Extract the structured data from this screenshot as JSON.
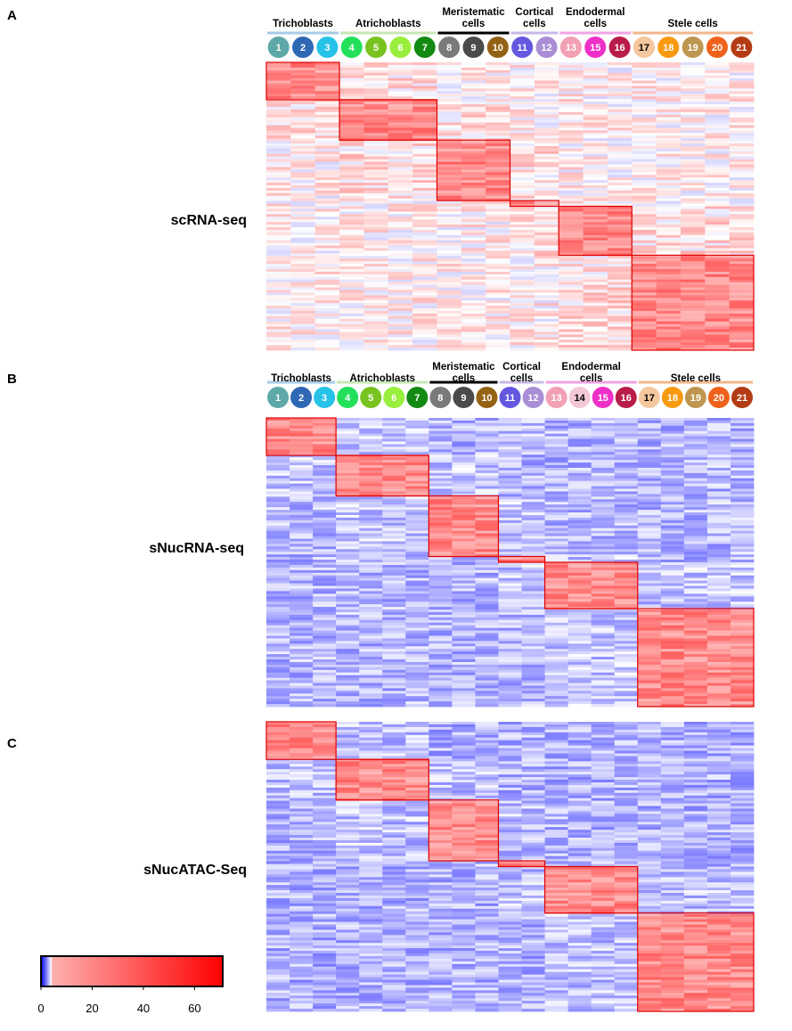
{
  "panels": [
    {
      "letter": "A",
      "assay": "scRNA-seq",
      "groups": [
        {
          "name": "Trichoblasts",
          "lines": [
            "Trichoblasts"
          ],
          "color": "#a9cbe6",
          "clusters": [
            1,
            2,
            3
          ]
        },
        {
          "name": "Atrichoblasts",
          "lines": [
            "Atrichoblasts"
          ],
          "color": "#c8e6b4",
          "clusters": [
            4,
            5,
            6,
            7
          ]
        },
        {
          "name": "Meristematic cells",
          "lines": [
            "Meristematic",
            "cells"
          ],
          "color": "#000000",
          "clusters": [
            8,
            9,
            10
          ]
        },
        {
          "name": "Cortical cells",
          "lines": [
            "Cortical",
            "cells"
          ],
          "color": "#c7b9e8",
          "clusters": [
            11,
            12
          ]
        },
        {
          "name": "Endodermal cells",
          "lines": [
            "Endodermal",
            "cells"
          ],
          "color": "#f0a3e6",
          "clusters": [
            13,
            15,
            16
          ]
        },
        {
          "name": "Stele cells",
          "lines": [
            "Stele cells"
          ],
          "color": "#f2b78d",
          "clusters": [
            17,
            18,
            19,
            20,
            21
          ]
        }
      ]
    },
    {
      "letter": "B",
      "assay": "sNucRNA-seq",
      "groups": [
        {
          "name": "Trichoblasts",
          "lines": [
            "Trichoblasts"
          ],
          "color": "#a9cbe6",
          "clusters": [
            1,
            2,
            3
          ]
        },
        {
          "name": "Atrichoblasts",
          "lines": [
            "Atrichoblasts"
          ],
          "color": "#c8e6b4",
          "clusters": [
            4,
            5,
            6,
            7
          ]
        },
        {
          "name": "Meristematic cells",
          "lines": [
            "Meristematic",
            "cells"
          ],
          "color": "#000000",
          "clusters": [
            8,
            9,
            10
          ]
        },
        {
          "name": "Cortical cells",
          "lines": [
            "Cortical",
            "cells"
          ],
          "color": "#c7b9e8",
          "clusters": [
            11,
            12
          ]
        },
        {
          "name": "Endodermal cells",
          "lines": [
            "Endodermal",
            "cells"
          ],
          "color": "#f0a3e6",
          "clusters": [
            13,
            14,
            15,
            16
          ]
        },
        {
          "name": "Stele cells",
          "lines": [
            "Stele cells"
          ],
          "color": "#f2b78d",
          "clusters": [
            17,
            18,
            19,
            20,
            21
          ]
        }
      ]
    },
    {
      "letter": "C",
      "assay": "sNucATAC-Seq",
      "groups": []
    }
  ],
  "cluster_colors": {
    "1": "#5ea8a8",
    "2": "#2f68b4",
    "3": "#27c2e8",
    "4": "#22e05a",
    "5": "#78c320",
    "6": "#98ef3c",
    "7": "#138a12",
    "8": "#7a7a7a",
    "9": "#4a4a4a",
    "10": "#946214",
    "11": "#6457e0",
    "12": "#a98ed6",
    "13": "#f2a0b4",
    "14": "#f2c8d6",
    "15": "#ee30c8",
    "16": "#b81c48",
    "17": "#f4c79e",
    "18": "#f79a10",
    "19": "#be9650",
    "20": "#f0621c",
    "21": "#b43c14"
  },
  "colorbar": {
    "ticks": [
      0,
      20,
      40,
      60
    ],
    "min": 0,
    "max": 71,
    "low_color": "#0000ff",
    "mid_color": "#ffffff",
    "high_color": "#ff0000"
  },
  "chart_data": {
    "type": "heatmap",
    "title": "",
    "value_label": "",
    "value_range": [
      0,
      71
    ],
    "panels": [
      {
        "panel": "A",
        "assay": "scRNA-seq",
        "columns": [
          1,
          2,
          3,
          4,
          5,
          6,
          7,
          8,
          9,
          10,
          11,
          12,
          13,
          15,
          16,
          17,
          18,
          19,
          20,
          21
        ],
        "enriched_blocks": [
          {
            "group": "Trichoblasts",
            "clusters": [
              1,
              2,
              3
            ],
            "rows": [
              0,
              0.13
            ]
          },
          {
            "group": "Atrichoblasts",
            "clusters": [
              4,
              5,
              6,
              7
            ],
            "rows": [
              0.13,
              0.27
            ]
          },
          {
            "group": "Meristematic cells",
            "clusters": [
              8,
              9,
              10
            ],
            "rows": [
              0.27,
              0.48
            ]
          },
          {
            "group": "Cortical cells",
            "clusters": [
              11,
              12
            ],
            "rows": [
              0.48,
              0.5
            ]
          },
          {
            "group": "Endodermal cells",
            "clusters": [
              13,
              15,
              16
            ],
            "rows": [
              0.5,
              0.67
            ]
          },
          {
            "group": "Stele cells",
            "clusters": [
              17,
              18,
              19,
              20,
              21
            ],
            "rows": [
              0.67,
              1.0
            ]
          }
        ]
      },
      {
        "panel": "B",
        "assay": "sNucRNA-seq",
        "columns": [
          1,
          2,
          3,
          4,
          5,
          6,
          7,
          8,
          9,
          10,
          11,
          12,
          13,
          14,
          15,
          16,
          17,
          18,
          19,
          20,
          21
        ],
        "enriched_blocks": [
          {
            "group": "Trichoblasts",
            "clusters": [
              1,
              2,
              3
            ],
            "rows": [
              0,
              0.13
            ]
          },
          {
            "group": "Atrichoblasts",
            "clusters": [
              4,
              5,
              6,
              7
            ],
            "rows": [
              0.13,
              0.27
            ]
          },
          {
            "group": "Meristematic cells",
            "clusters": [
              8,
              9,
              10
            ],
            "rows": [
              0.27,
              0.48
            ]
          },
          {
            "group": "Cortical cells",
            "clusters": [
              11,
              12
            ],
            "rows": [
              0.48,
              0.5
            ]
          },
          {
            "group": "Endodermal cells",
            "clusters": [
              13,
              14,
              15,
              16
            ],
            "rows": [
              0.5,
              0.66
            ]
          },
          {
            "group": "Stele cells",
            "clusters": [
              17,
              18,
              19,
              20,
              21
            ],
            "rows": [
              0.66,
              1.0
            ]
          }
        ]
      },
      {
        "panel": "C",
        "assay": "sNucATAC-Seq",
        "columns": [
          1,
          2,
          3,
          4,
          5,
          6,
          7,
          8,
          9,
          10,
          11,
          12,
          13,
          14,
          15,
          16,
          17,
          18,
          19,
          20,
          21
        ],
        "enriched_blocks": [
          {
            "group": "Trichoblasts",
            "clusters": [
              1,
              2,
              3
            ],
            "rows": [
              0,
              0.13
            ]
          },
          {
            "group": "Atrichoblasts",
            "clusters": [
              4,
              5,
              6,
              7
            ],
            "rows": [
              0.13,
              0.27
            ]
          },
          {
            "group": "Meristematic cells",
            "clusters": [
              8,
              9,
              10
            ],
            "rows": [
              0.27,
              0.48
            ]
          },
          {
            "group": "Cortical cells",
            "clusters": [
              11,
              12
            ],
            "rows": [
              0.48,
              0.5
            ]
          },
          {
            "group": "Endodermal cells",
            "clusters": [
              13,
              14,
              15,
              16
            ],
            "rows": [
              0.5,
              0.66
            ]
          },
          {
            "group": "Stele cells",
            "clusters": [
              17,
              18,
              19,
              20,
              21
            ],
            "rows": [
              0.66,
              1.0
            ]
          }
        ]
      }
    ]
  }
}
